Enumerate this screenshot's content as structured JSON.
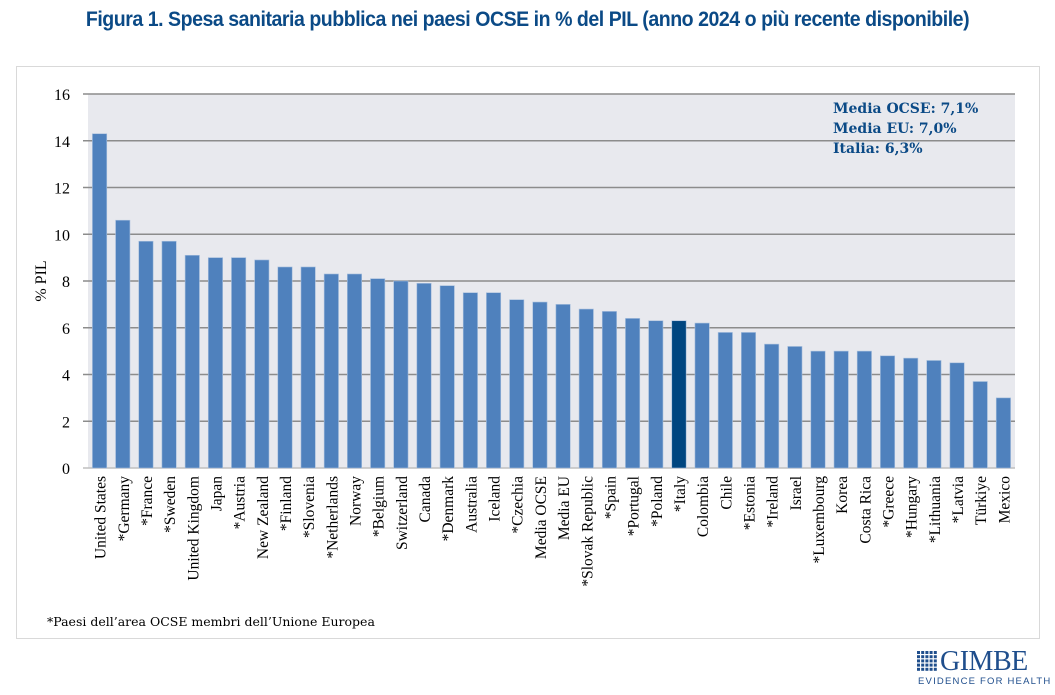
{
  "title": "Figura 1. Spesa sanitaria pubblica nei paesi OCSE in % del PIL (anno 2024 o più recente disponibile)",
  "footnote": "*Paesi dell’area OCSE membri dell’Unione Europea",
  "logo": {
    "name": "GIMBE",
    "tagline": "EVIDENCE FOR HEALTH",
    "color": "#1f4e8c"
  },
  "colors": {
    "bar": "#4f81bd",
    "highlight": "#004680",
    "plot_bg": "#e8e9ee",
    "grid": "#8c8c8c",
    "annotation": "#0b4a86"
  },
  "chart_data": {
    "type": "bar",
    "title": "Figura 1. Spesa sanitaria pubblica nei paesi OCSE in % del PIL (anno 2024 o più recente disponibile)",
    "xlabel": "",
    "ylabel": "% PIL",
    "ylim": [
      0,
      16
    ],
    "yticks": [
      0,
      2,
      4,
      6,
      8,
      10,
      12,
      14,
      16
    ],
    "grid": true,
    "legend": "none",
    "highlight_category": "*Italy",
    "annotations": [
      "Media OCSE: 7,1%",
      "Media EU: 7,0%",
      "Italia: 6,3%"
    ],
    "annotation_position": "top-right",
    "categories": [
      "United States",
      "*Germany",
      "*France",
      "*Sweden",
      "United Kingdom",
      "Japan",
      "*Austria",
      "New Zealand",
      "*Finland",
      "*Slovenia",
      "*Netherlands",
      "Norway",
      "*Belgium",
      "Switzerland",
      "Canada",
      "*Denmark",
      "Australia",
      "Iceland",
      "*Czechia",
      "Media OCSE",
      "Media EU",
      "*Slovak Republic",
      "*Spain",
      "*Portugal",
      "*Poland",
      "*Italy",
      "Colombia",
      "Chile",
      "*Estonia",
      "*Ireland",
      "Israel",
      "*Luxembourg",
      "Korea",
      "Costa Rica",
      "*Greece",
      "*Hungary",
      "*Lithuania",
      "*Latvia",
      "Türkiye",
      "Mexico"
    ],
    "values": [
      14.3,
      10.6,
      9.7,
      9.7,
      9.1,
      9.0,
      9.0,
      8.9,
      8.6,
      8.6,
      8.3,
      8.3,
      8.1,
      8.0,
      7.9,
      7.8,
      7.5,
      7.5,
      7.2,
      7.1,
      7.0,
      6.8,
      6.7,
      6.4,
      6.3,
      6.3,
      6.2,
      5.8,
      5.8,
      5.3,
      5.2,
      5.0,
      5.0,
      5.0,
      4.8,
      4.7,
      4.6,
      4.5,
      3.7,
      3.0
    ]
  }
}
